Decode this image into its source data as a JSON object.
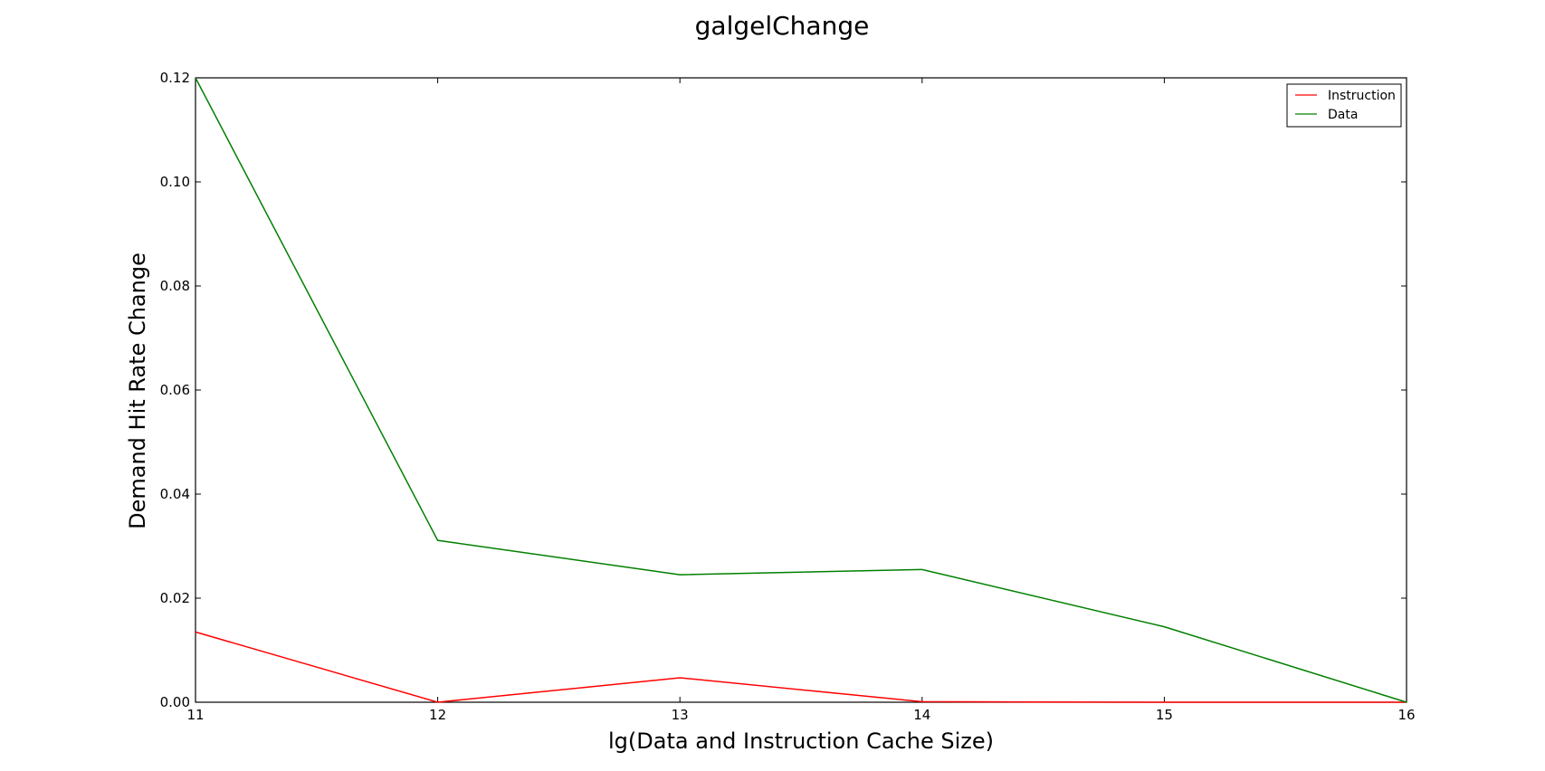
{
  "chart_data": {
    "type": "line",
    "title": "galgelChange",
    "xlabel": "lg(Data and Instruction Cache Size)",
    "ylabel": "Demand Hit Rate Change",
    "x": [
      11,
      12,
      13,
      14,
      15,
      16
    ],
    "xlim": [
      11,
      16
    ],
    "ylim": [
      0,
      0.12
    ],
    "xticks": [
      "11",
      "12",
      "13",
      "14",
      "15",
      "16"
    ],
    "yticks": [
      "0.00",
      "0.02",
      "0.04",
      "0.06",
      "0.08",
      "0.10",
      "0.12"
    ],
    "grid": false,
    "legend_position": "top-right",
    "series": [
      {
        "name": "Instruction",
        "color": "#ff0000",
        "values": [
          0.0135,
          0.0,
          0.0047,
          0.0001,
          0.0,
          0.0
        ]
      },
      {
        "name": "Data",
        "color": "#008000",
        "values": [
          0.12,
          0.0311,
          0.0245,
          0.0255,
          0.0145,
          0.0
        ]
      }
    ]
  }
}
